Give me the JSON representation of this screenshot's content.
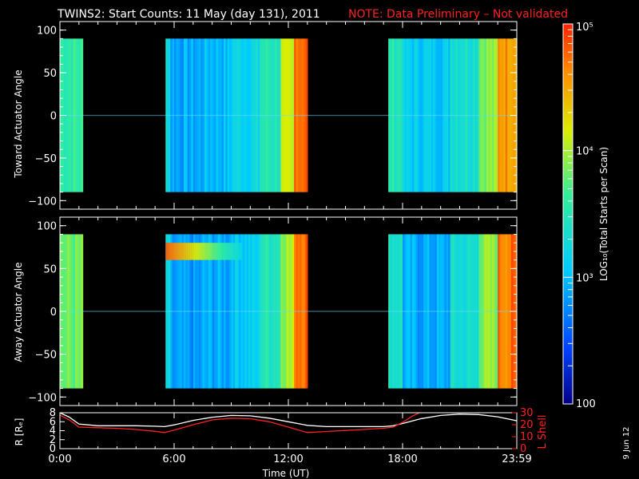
{
  "title": {
    "main": "TWINS2: Start Counts: 11 May (day 131), 2011",
    "note": "NOTE: Data Preliminary – Not validated"
  },
  "side_stamp": "9 Jun 12",
  "colorbar": {
    "label": "LOG₁₀(Total Starts per Scan)",
    "tick_labels": [
      "10⁵",
      "10⁴",
      "10³",
      "100"
    ],
    "tick_values": [
      100000,
      10000,
      1000,
      100
    ],
    "scale": "log",
    "range": [
      100,
      100000
    ],
    "colors": [
      "#000088",
      "#0044ff",
      "#00ccff",
      "#33ee99",
      "#ddee00",
      "#ff8800",
      "#ff2200"
    ]
  },
  "chart_data": [
    {
      "type": "heatmap",
      "panel": "top",
      "ylabel": "Toward Actuator Angle",
      "ylim": [
        -110,
        110
      ],
      "y_tick_labels": [
        "100",
        "50",
        "0",
        "−50",
        "−100"
      ],
      "y_tick_values": [
        100,
        50,
        0,
        -50,
        -100
      ],
      "data_y_range": [
        -90,
        90
      ],
      "xlim_hours": [
        0,
        24
      ],
      "log10_counts_by_time": [
        {
          "t0": 0.0,
          "t1": 1.2,
          "v": 3.6
        },
        {
          "t0": 5.55,
          "t1": 5.8,
          "v": 3.3
        },
        {
          "t0": 5.8,
          "t1": 7.5,
          "v": 2.9
        },
        {
          "t0": 7.5,
          "t1": 9.0,
          "v": 3.0
        },
        {
          "t0": 9.0,
          "t1": 10.5,
          "v": 3.2
        },
        {
          "t0": 10.5,
          "t1": 11.6,
          "v": 3.5
        },
        {
          "t0": 11.6,
          "t1": 12.3,
          "v": 4.0
        },
        {
          "t0": 12.3,
          "t1": 13.0,
          "v": 4.8
        },
        {
          "t0": 17.25,
          "t1": 18.0,
          "v": 3.5
        },
        {
          "t0": 18.0,
          "t1": 20.5,
          "v": 3.1
        },
        {
          "t0": 20.5,
          "t1": 22.0,
          "v": 3.4
        },
        {
          "t0": 22.0,
          "t1": 23.0,
          "v": 3.9
        },
        {
          "t0": 23.0,
          "t1": 24.0,
          "v": 4.6
        }
      ]
    },
    {
      "type": "heatmap",
      "panel": "middle",
      "ylabel": "Away Actuator Angle",
      "ylim": [
        -110,
        110
      ],
      "y_tick_labels": [
        "100",
        "50",
        "0",
        "−50",
        "−100"
      ],
      "y_tick_values": [
        100,
        50,
        0,
        -50,
        -100
      ],
      "data_y_range": [
        -90,
        90
      ],
      "xlim_hours": [
        0,
        24
      ],
      "log10_counts_by_time": [
        {
          "t0": 0.0,
          "t1": 1.2,
          "v": 3.8
        },
        {
          "t0": 5.55,
          "t1": 5.8,
          "v": 3.2
        },
        {
          "t0": 5.8,
          "t1": 7.5,
          "v": 2.8
        },
        {
          "t0": 7.5,
          "t1": 9.0,
          "v": 2.9
        },
        {
          "t0": 9.0,
          "t1": 10.5,
          "v": 3.1
        },
        {
          "t0": 10.5,
          "t1": 11.6,
          "v": 3.5
        },
        {
          "t0": 11.6,
          "t1": 12.3,
          "v": 4.0
        },
        {
          "t0": 12.3,
          "t1": 13.0,
          "v": 4.8
        },
        {
          "t0": 17.25,
          "t1": 18.0,
          "v": 3.4
        },
        {
          "t0": 18.0,
          "t1": 20.5,
          "v": 2.9
        },
        {
          "t0": 20.5,
          "t1": 22.0,
          "v": 3.3
        },
        {
          "t0": 22.0,
          "t1": 23.0,
          "v": 3.9
        },
        {
          "t0": 23.0,
          "t1": 24.0,
          "v": 4.7
        }
      ],
      "bright_band_angle_range": [
        60,
        80
      ],
      "bright_band_time_range": [
        5.55,
        9.5
      ]
    },
    {
      "type": "line",
      "panel": "bottom",
      "xlabel": "Time (UT)",
      "x_tick_labels": [
        "0:00",
        "6:00",
        "12:00",
        "18:00",
        "23:59"
      ],
      "x_tick_values": [
        0,
        6,
        12,
        18,
        24
      ],
      "xlim": [
        0,
        24
      ],
      "left_axis": {
        "label": "R [Rₑ]",
        "ylim": [
          0,
          8
        ],
        "tick_labels": [
          "8",
          "6",
          "4",
          "2",
          "0"
        ],
        "tick_values": [
          8,
          6,
          4,
          2,
          0
        ]
      },
      "right_axis": {
        "label": "L Shell",
        "ylim": [
          0,
          30
        ],
        "tick_labels": [
          "30",
          "20",
          "10",
          "0"
        ],
        "tick_values": [
          30,
          20,
          10,
          0
        ]
      },
      "series": [
        {
          "axis": "left",
          "color": "#ffffff",
          "x": [
            0,
            0.5,
            1,
            2,
            3,
            4,
            5,
            5.5,
            6,
            7,
            8,
            9,
            10,
            11,
            12,
            13,
            14,
            15,
            16,
            17,
            17.5,
            18,
            19,
            20,
            21,
            22,
            23,
            24
          ],
          "y": [
            8,
            7,
            5.5,
            5.1,
            5.1,
            5.1,
            5.0,
            4.9,
            5.3,
            6.3,
            7.0,
            7.4,
            7.3,
            6.8,
            6.0,
            5.2,
            4.9,
            4.9,
            4.9,
            4.9,
            5.1,
            5.6,
            6.7,
            7.4,
            7.7,
            7.6,
            7.1,
            6.2
          ]
        },
        {
          "axis": "right",
          "color": "#ff2020",
          "x": [
            0,
            0.5,
            1,
            2,
            3,
            4,
            5,
            5.5,
            6,
            7,
            8,
            9,
            10,
            11,
            12,
            13,
            14,
            15,
            16,
            17,
            17.5,
            18,
            18.5,
            19
          ],
          "y": [
            28,
            24,
            18,
            17.5,
            17,
            16,
            14.5,
            13.5,
            15.5,
            20,
            24,
            25.5,
            25,
            22.5,
            18,
            13.5,
            14.3,
            15.2,
            16.1,
            17,
            18,
            22,
            27,
            31
          ]
        }
      ]
    }
  ]
}
